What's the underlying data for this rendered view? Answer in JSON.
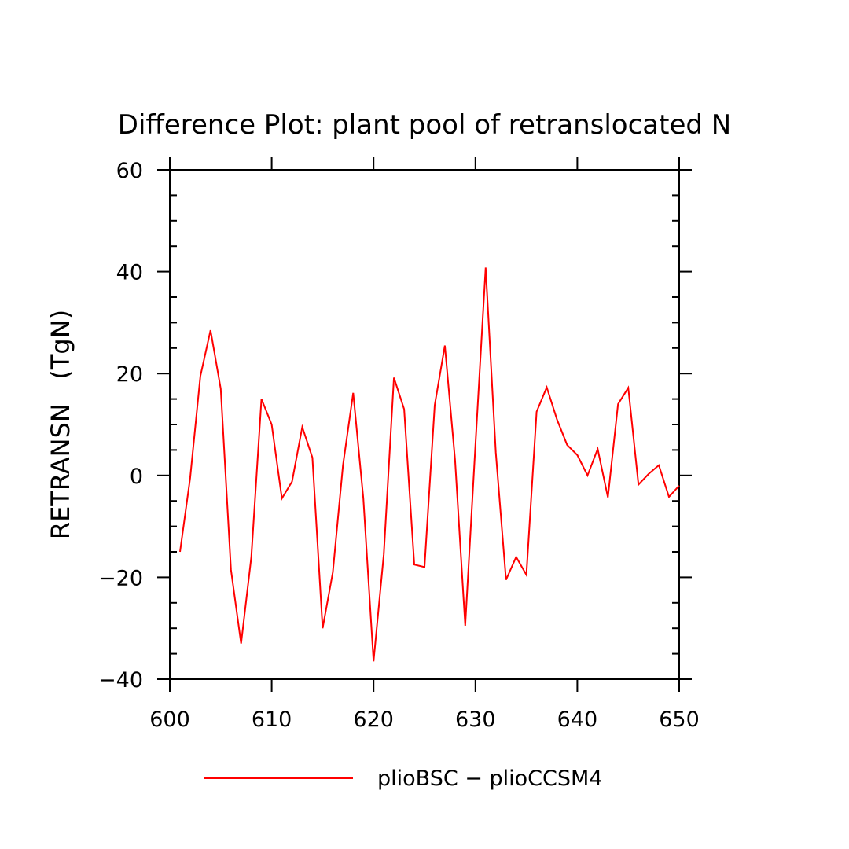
{
  "chart_data": {
    "type": "line",
    "title": "Difference Plot: plant pool of retranslocated N",
    "ylabel": "RETRANSN   (TgN)",
    "xlabel": "",
    "xlim": [
      600,
      650
    ],
    "ylim": [
      -40,
      60
    ],
    "x_ticks": [
      600,
      610,
      620,
      630,
      640,
      650
    ],
    "x_tick_labels": [
      "600",
      "610",
      "620",
      "630",
      "640",
      "650"
    ],
    "y_ticks": [
      -40,
      -20,
      0,
      20,
      40,
      60
    ],
    "y_tick_labels": [
      "−40",
      "−20",
      "0",
      "20",
      "40",
      "60"
    ],
    "grid": false,
    "legend_position": "bottom",
    "series": [
      {
        "name": "plioBSC − plioCCSM4",
        "color": "#ff0000",
        "x": [
          601,
          602,
          603,
          604,
          605,
          606,
          607,
          608,
          609,
          610,
          611,
          612,
          613,
          614,
          615,
          616,
          617,
          618,
          619,
          620,
          621,
          622,
          623,
          624,
          625,
          626,
          627,
          628,
          629,
          630,
          631,
          632,
          633,
          634,
          635,
          636,
          637,
          638,
          639,
          640,
          641,
          642,
          643,
          644,
          645,
          646,
          647,
          648,
          649,
          650
        ],
        "values": [
          -15,
          -0.5,
          19.5,
          28.5,
          17,
          -18.5,
          -33,
          -16,
          15,
          10,
          -4.5,
          -1.2,
          9.5,
          3.5,
          -30,
          -19,
          2,
          16.2,
          -4.5,
          -36.5,
          -15.5,
          19.2,
          13,
          -17.5,
          -18,
          13.8,
          25.5,
          3,
          -29.5,
          6,
          40.8,
          4.5,
          -20.5,
          -16,
          -19.5,
          12.5,
          17.3,
          11,
          6,
          4,
          0,
          5.2,
          -4.3,
          14,
          17.2,
          -1.8,
          0.3,
          2,
          -4.2,
          -2
        ]
      }
    ]
  }
}
